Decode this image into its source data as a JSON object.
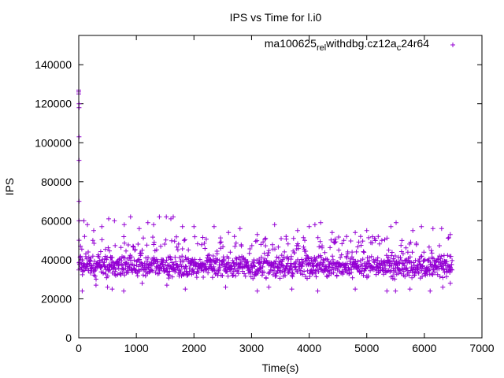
{
  "chart_data": {
    "type": "scatter",
    "title": "IPS vs Time for l.i0",
    "xlabel": "Time(s)",
    "ylabel": "IPS",
    "xlim": [
      0,
      7000
    ],
    "ylim": [
      0,
      155000
    ],
    "x_ticks": [
      "0",
      "1000",
      "2000",
      "3000",
      "4000",
      "5000",
      "6000",
      "7000"
    ],
    "y_ticks": [
      "0",
      "20000",
      "40000",
      "60000",
      "80000",
      "100000",
      "120000",
      "140000"
    ],
    "grid": false,
    "legend_position": "top-right",
    "marker": "+",
    "series": [
      {
        "name": "ma100625_rel_withdbg.cz12a_c24r64",
        "legend_parts": [
          "ma100625",
          "rel",
          "withdbg.cz12a",
          "c",
          "24r64"
        ],
        "color": "#9400d3",
        "x_range": [
          0,
          6480
        ],
        "sampling_interval": 10,
        "typical_band": [
          30000,
          43000
        ],
        "max_outlier": 63000,
        "min_outlier": 23000,
        "startup_points": [
          [
            0,
            127000
          ],
          [
            0,
            126000
          ],
          [
            0,
            125000
          ],
          [
            5,
            120000
          ],
          [
            5,
            118000
          ],
          [
            5,
            103000
          ],
          [
            5,
            91000
          ],
          [
            5,
            70000
          ],
          [
            5,
            60000
          ],
          [
            5,
            50000
          ]
        ],
        "points": [
          [
            30,
            47000
          ],
          [
            90,
            60000
          ],
          [
            150,
            58000
          ],
          [
            260,
            55000
          ],
          [
            400,
            57000
          ],
          [
            520,
            61000
          ],
          [
            620,
            60000
          ],
          [
            790,
            58000
          ],
          [
            900,
            62000
          ],
          [
            1050,
            56000
          ],
          [
            1200,
            59000
          ],
          [
            1300,
            58000
          ],
          [
            1400,
            62000
          ],
          [
            1520,
            62000
          ],
          [
            1600,
            61000
          ],
          [
            1640,
            62000
          ],
          [
            1800,
            57000
          ],
          [
            2000,
            57000
          ],
          [
            2350,
            57000
          ],
          [
            2600,
            54000
          ],
          [
            2800,
            56000
          ],
          [
            3100,
            53000
          ],
          [
            3400,
            58000
          ],
          [
            3600,
            52000
          ],
          [
            3800,
            55000
          ],
          [
            4000,
            57000
          ],
          [
            4100,
            58000
          ],
          [
            4200,
            59000
          ],
          [
            4400,
            54000
          ],
          [
            4650,
            52000
          ],
          [
            4800,
            54000
          ],
          [
            5000,
            55000
          ],
          [
            5200,
            52000
          ],
          [
            5420,
            57000
          ],
          [
            5510,
            59000
          ],
          [
            5800,
            55000
          ],
          [
            5950,
            57000
          ],
          [
            6150,
            56000
          ],
          [
            6300,
            56000
          ],
          [
            6450,
            53000
          ],
          [
            60,
            24000
          ],
          [
            300,
            27000
          ],
          [
            500,
            26000
          ],
          [
            580,
            25000
          ],
          [
            780,
            24000
          ],
          [
            1100,
            28000
          ],
          [
            1530,
            27000
          ],
          [
            1850,
            25000
          ],
          [
            2550,
            26000
          ],
          [
            3100,
            24000
          ],
          [
            3300,
            26000
          ],
          [
            3700,
            25000
          ],
          [
            4150,
            24000
          ],
          [
            4800,
            25000
          ],
          [
            5350,
            24000
          ],
          [
            5500,
            24000
          ],
          [
            5750,
            25000
          ],
          [
            6100,
            24000
          ],
          [
            6320,
            26000
          ],
          [
            6450,
            28000
          ]
        ]
      }
    ]
  }
}
